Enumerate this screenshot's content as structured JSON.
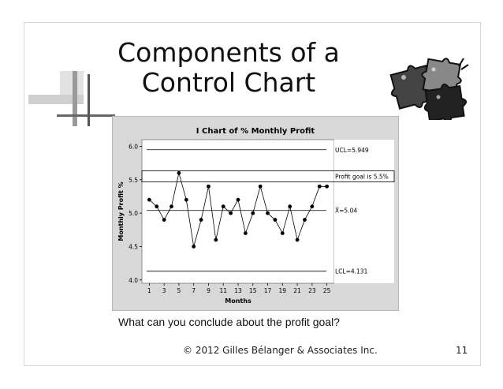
{
  "slide": {
    "title_line1": "Components of a",
    "title_line2": "Control Chart",
    "question": "What can you conclude about the profit goal?",
    "footer": "© 2012 Gilles Bélanger & Associates Inc.",
    "page_number": "11"
  },
  "chart_data": {
    "type": "line",
    "title": "I Chart of % Monthly Profit",
    "xlabel": "Months",
    "ylabel": "Monthly Profit %",
    "x": [
      1,
      2,
      3,
      4,
      5,
      6,
      7,
      8,
      9,
      10,
      11,
      12,
      13,
      14,
      15,
      16,
      17,
      18,
      19,
      20,
      21,
      22,
      23,
      24,
      25
    ],
    "values": [
      5.2,
      5.1,
      4.9,
      5.1,
      5.6,
      5.2,
      4.5,
      4.9,
      5.4,
      4.6,
      5.1,
      5.0,
      5.2,
      4.7,
      5.0,
      5.4,
      5.0,
      4.9,
      4.7,
      5.1,
      4.6,
      4.9,
      5.1,
      5.4,
      5.4
    ],
    "x_ticks": [
      "1",
      "3",
      "5",
      "7",
      "9",
      "11",
      "13",
      "15",
      "17",
      "19",
      "21",
      "23",
      "25"
    ],
    "y_ticks": [
      "4.0",
      "4.5",
      "5.0",
      "5.5",
      "6.0"
    ],
    "xlim": [
      0,
      26
    ],
    "ylim": [
      3.95,
      6.1
    ],
    "reference_lines": [
      {
        "label": "UCL=5.949",
        "value": 5.949,
        "boxed": false
      },
      {
        "label": "Profit goal is 5.5%",
        "value": 5.55,
        "boxed": true
      },
      {
        "label": "X̄=5.04",
        "value": 5.04,
        "boxed": false
      },
      {
        "label": "LCL=4.131",
        "value": 4.131,
        "boxed": false
      }
    ],
    "colors": {
      "background": "#d8d8d8",
      "plot": "#ffffff",
      "line": "#000000",
      "marker": "#000000"
    }
  }
}
